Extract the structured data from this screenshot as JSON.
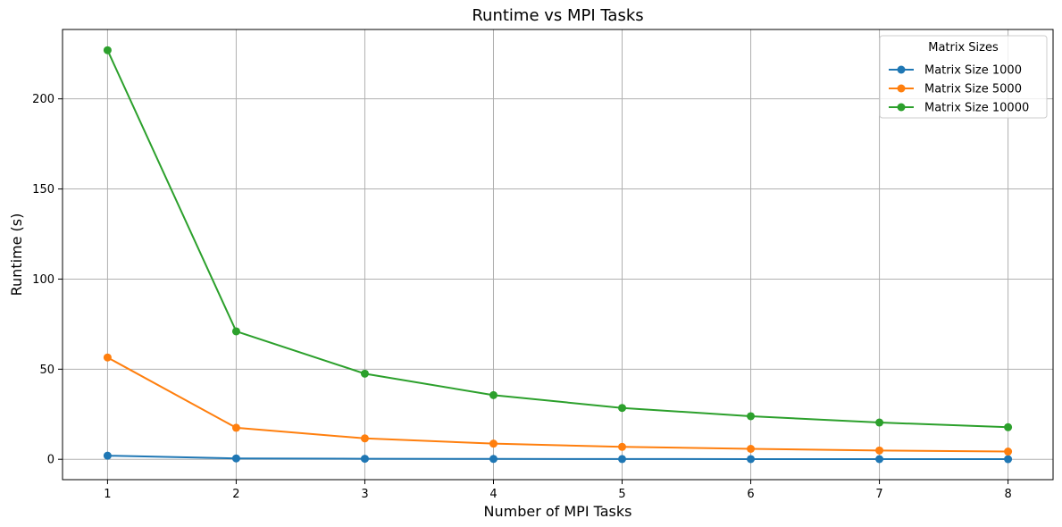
{
  "chart_data": {
    "type": "line",
    "title": "Runtime vs MPI Tasks",
    "xlabel": "Number of MPI Tasks",
    "ylabel": "Runtime (s)",
    "x": [
      1,
      2,
      3,
      4,
      5,
      6,
      7,
      8
    ],
    "xticks": [
      1,
      2,
      3,
      4,
      5,
      6,
      7,
      8
    ],
    "yticks": [
      0,
      50,
      100,
      150,
      200
    ],
    "xlim": [
      0.65,
      8.35
    ],
    "ylim": [
      -11.3,
      238.5
    ],
    "grid": true,
    "legend": {
      "title": "Matrix Sizes",
      "placement": "top-right"
    },
    "series": [
      {
        "name": "Matrix Size 1000",
        "color": "#1f77b4",
        "values": [
          2.0,
          0.5,
          0.3,
          0.2,
          0.15,
          0.12,
          0.1,
          0.09
        ]
      },
      {
        "name": "Matrix Size 5000",
        "color": "#ff7f0e",
        "values": [
          56.5,
          17.5,
          11.6,
          8.7,
          6.9,
          5.8,
          4.9,
          4.3
        ]
      },
      {
        "name": "Matrix Size 10000",
        "color": "#2ca02c",
        "values": [
          227.0,
          71.0,
          47.5,
          35.6,
          28.5,
          23.9,
          20.4,
          17.8
        ]
      }
    ]
  }
}
